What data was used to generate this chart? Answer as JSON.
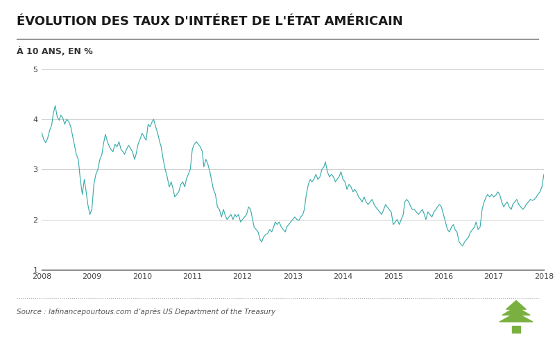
{
  "title": "ÉVOLUTION DES TAUX D'INTÉRET DE L'ÉTAT AMÉRICAIN",
  "subtitle": "À 10 ANS, EN %",
  "source": "Source : lafinancepourtous.com d’après US Department of the Treasury",
  "line_color": "#3aacab",
  "background_color": "#ffffff",
  "grid_color": "#d0d0d0",
  "ylim": [
    1,
    5
  ],
  "yticks": [
    1,
    2,
    3,
    4,
    5
  ],
  "xlabel_years": [
    "2008",
    "2009",
    "2010",
    "2011",
    "2012",
    "2013",
    "2014",
    "2015",
    "2016",
    "2017",
    "2018"
  ],
  "title_color": "#1a1a1a",
  "subtitle_color": "#333333",
  "source_color": "#555555",
  "tree_color": "#7ab040",
  "dotted_line_color": "#aaaaaa",
  "data": [
    [
      2008.0,
      3.74
    ],
    [
      2008.04,
      3.6
    ],
    [
      2008.08,
      3.53
    ],
    [
      2008.12,
      3.62
    ],
    [
      2008.16,
      3.78
    ],
    [
      2008.2,
      3.88
    ],
    [
      2008.23,
      4.1
    ],
    [
      2008.27,
      4.27
    ],
    [
      2008.31,
      4.05
    ],
    [
      2008.35,
      3.98
    ],
    [
      2008.38,
      4.08
    ],
    [
      2008.42,
      4.03
    ],
    [
      2008.46,
      3.9
    ],
    [
      2008.5,
      4.0
    ],
    [
      2008.54,
      3.95
    ],
    [
      2008.58,
      3.85
    ],
    [
      2008.62,
      3.65
    ],
    [
      2008.65,
      3.5
    ],
    [
      2008.69,
      3.3
    ],
    [
      2008.73,
      3.2
    ],
    [
      2008.77,
      2.8
    ],
    [
      2008.81,
      2.5
    ],
    [
      2008.85,
      2.8
    ],
    [
      2008.88,
      2.6
    ],
    [
      2008.92,
      2.3
    ],
    [
      2008.96,
      2.1
    ],
    [
      2009.0,
      2.2
    ],
    [
      2009.04,
      2.7
    ],
    [
      2009.08,
      2.9
    ],
    [
      2009.12,
      3.0
    ],
    [
      2009.16,
      3.2
    ],
    [
      2009.2,
      3.3
    ],
    [
      2009.23,
      3.5
    ],
    [
      2009.27,
      3.7
    ],
    [
      2009.31,
      3.55
    ],
    [
      2009.35,
      3.45
    ],
    [
      2009.38,
      3.4
    ],
    [
      2009.42,
      3.35
    ],
    [
      2009.46,
      3.5
    ],
    [
      2009.5,
      3.45
    ],
    [
      2009.54,
      3.55
    ],
    [
      2009.58,
      3.4
    ],
    [
      2009.62,
      3.35
    ],
    [
      2009.65,
      3.3
    ],
    [
      2009.69,
      3.4
    ],
    [
      2009.73,
      3.48
    ],
    [
      2009.77,
      3.42
    ],
    [
      2009.81,
      3.35
    ],
    [
      2009.85,
      3.2
    ],
    [
      2009.88,
      3.3
    ],
    [
      2009.92,
      3.5
    ],
    [
      2009.96,
      3.6
    ],
    [
      2010.0,
      3.72
    ],
    [
      2010.04,
      3.65
    ],
    [
      2010.08,
      3.58
    ],
    [
      2010.12,
      3.9
    ],
    [
      2010.16,
      3.85
    ],
    [
      2010.2,
      3.95
    ],
    [
      2010.23,
      4.0
    ],
    [
      2010.27,
      3.85
    ],
    [
      2010.31,
      3.72
    ],
    [
      2010.35,
      3.55
    ],
    [
      2010.38,
      3.45
    ],
    [
      2010.42,
      3.2
    ],
    [
      2010.46,
      3.0
    ],
    [
      2010.5,
      2.85
    ],
    [
      2010.54,
      2.65
    ],
    [
      2010.58,
      2.75
    ],
    [
      2010.62,
      2.6
    ],
    [
      2010.65,
      2.45
    ],
    [
      2010.69,
      2.5
    ],
    [
      2010.73,
      2.55
    ],
    [
      2010.77,
      2.7
    ],
    [
      2010.81,
      2.75
    ],
    [
      2010.85,
      2.65
    ],
    [
      2010.88,
      2.8
    ],
    [
      2010.92,
      2.9
    ],
    [
      2010.96,
      3.0
    ],
    [
      2011.0,
      3.4
    ],
    [
      2011.04,
      3.5
    ],
    [
      2011.08,
      3.55
    ],
    [
      2011.12,
      3.5
    ],
    [
      2011.16,
      3.45
    ],
    [
      2011.2,
      3.35
    ],
    [
      2011.23,
      3.05
    ],
    [
      2011.27,
      3.2
    ],
    [
      2011.31,
      3.1
    ],
    [
      2011.35,
      2.95
    ],
    [
      2011.38,
      2.8
    ],
    [
      2011.42,
      2.6
    ],
    [
      2011.46,
      2.5
    ],
    [
      2011.5,
      2.25
    ],
    [
      2011.54,
      2.2
    ],
    [
      2011.58,
      2.05
    ],
    [
      2011.62,
      2.2
    ],
    [
      2011.65,
      2.1
    ],
    [
      2011.69,
      2.0
    ],
    [
      2011.73,
      2.05
    ],
    [
      2011.77,
      2.1
    ],
    [
      2011.81,
      2.0
    ],
    [
      2011.85,
      2.1
    ],
    [
      2011.88,
      2.05
    ],
    [
      2011.92,
      2.1
    ],
    [
      2011.96,
      1.95
    ],
    [
      2012.0,
      2.0
    ],
    [
      2012.04,
      2.05
    ],
    [
      2012.08,
      2.1
    ],
    [
      2012.12,
      2.25
    ],
    [
      2012.16,
      2.2
    ],
    [
      2012.2,
      2.0
    ],
    [
      2012.23,
      1.85
    ],
    [
      2012.27,
      1.8
    ],
    [
      2012.31,
      1.75
    ],
    [
      2012.35,
      1.6
    ],
    [
      2012.38,
      1.55
    ],
    [
      2012.42,
      1.65
    ],
    [
      2012.46,
      1.7
    ],
    [
      2012.5,
      1.72
    ],
    [
      2012.54,
      1.8
    ],
    [
      2012.58,
      1.75
    ],
    [
      2012.62,
      1.85
    ],
    [
      2012.65,
      1.95
    ],
    [
      2012.69,
      1.9
    ],
    [
      2012.73,
      1.95
    ],
    [
      2012.77,
      1.85
    ],
    [
      2012.81,
      1.8
    ],
    [
      2012.85,
      1.75
    ],
    [
      2012.88,
      1.85
    ],
    [
      2012.92,
      1.9
    ],
    [
      2012.96,
      1.95
    ],
    [
      2013.0,
      2.0
    ],
    [
      2013.04,
      2.05
    ],
    [
      2013.08,
      2.0
    ],
    [
      2013.12,
      1.98
    ],
    [
      2013.16,
      2.05
    ],
    [
      2013.2,
      2.1
    ],
    [
      2013.23,
      2.2
    ],
    [
      2013.27,
      2.5
    ],
    [
      2013.31,
      2.7
    ],
    [
      2013.35,
      2.8
    ],
    [
      2013.38,
      2.75
    ],
    [
      2013.42,
      2.8
    ],
    [
      2013.46,
      2.9
    ],
    [
      2013.5,
      2.8
    ],
    [
      2013.54,
      2.85
    ],
    [
      2013.58,
      3.0
    ],
    [
      2013.62,
      3.05
    ],
    [
      2013.65,
      3.15
    ],
    [
      2013.69,
      2.95
    ],
    [
      2013.73,
      2.85
    ],
    [
      2013.77,
      2.9
    ],
    [
      2013.81,
      2.85
    ],
    [
      2013.85,
      2.75
    ],
    [
      2013.88,
      2.8
    ],
    [
      2013.92,
      2.85
    ],
    [
      2013.96,
      2.95
    ],
    [
      2014.0,
      2.8
    ],
    [
      2014.04,
      2.75
    ],
    [
      2014.08,
      2.6
    ],
    [
      2014.12,
      2.7
    ],
    [
      2014.16,
      2.65
    ],
    [
      2014.2,
      2.55
    ],
    [
      2014.23,
      2.6
    ],
    [
      2014.27,
      2.55
    ],
    [
      2014.31,
      2.45
    ],
    [
      2014.35,
      2.4
    ],
    [
      2014.38,
      2.35
    ],
    [
      2014.42,
      2.45
    ],
    [
      2014.46,
      2.35
    ],
    [
      2014.5,
      2.3
    ],
    [
      2014.54,
      2.35
    ],
    [
      2014.58,
      2.4
    ],
    [
      2014.62,
      2.3
    ],
    [
      2014.65,
      2.25
    ],
    [
      2014.69,
      2.2
    ],
    [
      2014.73,
      2.15
    ],
    [
      2014.77,
      2.1
    ],
    [
      2014.81,
      2.2
    ],
    [
      2014.85,
      2.3
    ],
    [
      2014.88,
      2.25
    ],
    [
      2014.92,
      2.2
    ],
    [
      2014.96,
      2.15
    ],
    [
      2015.0,
      1.9
    ],
    [
      2015.04,
      1.95
    ],
    [
      2015.08,
      2.0
    ],
    [
      2015.12,
      1.9
    ],
    [
      2015.16,
      2.0
    ],
    [
      2015.2,
      2.1
    ],
    [
      2015.23,
      2.35
    ],
    [
      2015.27,
      2.4
    ],
    [
      2015.31,
      2.35
    ],
    [
      2015.35,
      2.25
    ],
    [
      2015.38,
      2.2
    ],
    [
      2015.42,
      2.2
    ],
    [
      2015.46,
      2.15
    ],
    [
      2015.5,
      2.1
    ],
    [
      2015.54,
      2.15
    ],
    [
      2015.58,
      2.2
    ],
    [
      2015.62,
      2.1
    ],
    [
      2015.65,
      2.0
    ],
    [
      2015.69,
      2.15
    ],
    [
      2015.73,
      2.1
    ],
    [
      2015.77,
      2.05
    ],
    [
      2015.81,
      2.15
    ],
    [
      2015.85,
      2.2
    ],
    [
      2015.88,
      2.25
    ],
    [
      2015.92,
      2.3
    ],
    [
      2015.96,
      2.25
    ],
    [
      2016.0,
      2.1
    ],
    [
      2016.04,
      1.95
    ],
    [
      2016.08,
      1.8
    ],
    [
      2016.12,
      1.75
    ],
    [
      2016.16,
      1.85
    ],
    [
      2016.2,
      1.9
    ],
    [
      2016.23,
      1.8
    ],
    [
      2016.27,
      1.75
    ],
    [
      2016.31,
      1.56
    ],
    [
      2016.35,
      1.5
    ],
    [
      2016.38,
      1.47
    ],
    [
      2016.42,
      1.55
    ],
    [
      2016.46,
      1.6
    ],
    [
      2016.5,
      1.65
    ],
    [
      2016.54,
      1.75
    ],
    [
      2016.58,
      1.8
    ],
    [
      2016.62,
      1.85
    ],
    [
      2016.65,
      1.95
    ],
    [
      2016.69,
      1.8
    ],
    [
      2016.73,
      1.85
    ],
    [
      2016.77,
      2.2
    ],
    [
      2016.81,
      2.35
    ],
    [
      2016.85,
      2.45
    ],
    [
      2016.88,
      2.5
    ],
    [
      2016.92,
      2.45
    ],
    [
      2016.96,
      2.5
    ],
    [
      2017.0,
      2.45
    ],
    [
      2017.04,
      2.48
    ],
    [
      2017.08,
      2.55
    ],
    [
      2017.12,
      2.5
    ],
    [
      2017.16,
      2.35
    ],
    [
      2017.2,
      2.25
    ],
    [
      2017.23,
      2.3
    ],
    [
      2017.27,
      2.35
    ],
    [
      2017.31,
      2.25
    ],
    [
      2017.35,
      2.2
    ],
    [
      2017.38,
      2.3
    ],
    [
      2017.42,
      2.35
    ],
    [
      2017.46,
      2.4
    ],
    [
      2017.5,
      2.3
    ],
    [
      2017.54,
      2.25
    ],
    [
      2017.58,
      2.2
    ],
    [
      2017.62,
      2.25
    ],
    [
      2017.65,
      2.3
    ],
    [
      2017.69,
      2.35
    ],
    [
      2017.73,
      2.4
    ],
    [
      2017.77,
      2.38
    ],
    [
      2017.81,
      2.4
    ],
    [
      2017.85,
      2.45
    ],
    [
      2017.88,
      2.5
    ],
    [
      2017.92,
      2.55
    ],
    [
      2017.96,
      2.65
    ],
    [
      2018.0,
      2.9
    ]
  ]
}
